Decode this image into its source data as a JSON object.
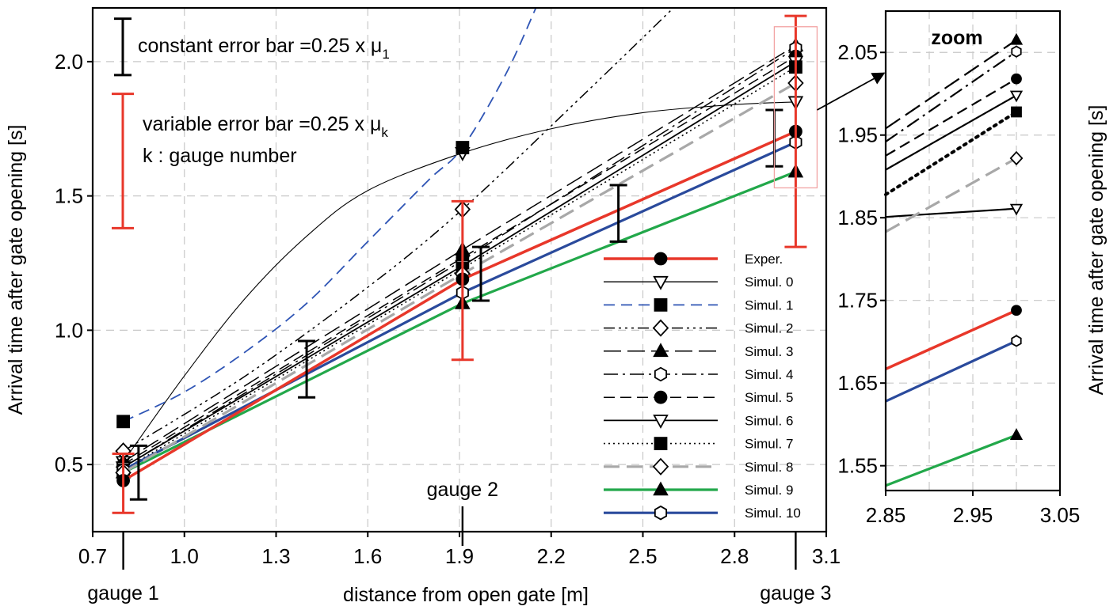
{
  "chart_data": [
    {
      "type": "line",
      "xlabel": "distance from open gate [m]",
      "ylabel": "Arrival time after gate opening [s]",
      "xlim": [
        0.7,
        3.1
      ],
      "ylim": [
        0.25,
        2.2
      ],
      "xticks": [
        0.7,
        1.0,
        1.3,
        1.6,
        1.9,
        2.2,
        2.5,
        2.8,
        3.1
      ],
      "xtick_labels": [
        "0.7",
        "1.0",
        "1.3",
        "1.6",
        "1.9",
        "2.2",
        "2.5",
        "2.8",
        "3.1"
      ],
      "yticks": [
        0.5,
        1.0,
        1.5,
        2.0
      ],
      "ytick_labels": [
        "0.5",
        "1.0",
        "1.5",
        "2.0"
      ],
      "grid": true,
      "legend_position": "bottom-right",
      "gauges": [
        {
          "label": "gauge 1",
          "x": 0.8
        },
        {
          "label": "gauge 2",
          "x": 1.91
        },
        {
          "label": "gauge 3",
          "x": 3.0
        }
      ],
      "annotations": {
        "constant_error_bar": "constant error bar =0.25 x μ",
        "constant_error_bar_sub": "1",
        "variable_error_bar": "variable error bar =0.25 x μ",
        "variable_error_bar_sub": "k",
        "gauge_note": "k : gauge number"
      },
      "constant_error_bars": [
        {
          "x": 0.85,
          "low": 0.37,
          "high": 0.57
        },
        {
          "x": 1.4,
          "low": 0.75,
          "high": 0.96
        },
        {
          "x": 1.97,
          "low": 1.11,
          "high": 1.31
        },
        {
          "x": 2.42,
          "low": 1.33,
          "high": 1.54
        },
        {
          "x": 2.93,
          "low": 1.61,
          "high": 1.82
        }
      ],
      "variable_error_bars": [
        {
          "x": 0.8,
          "low": 0.32,
          "high": 0.54
        },
        {
          "x": 1.91,
          "low": 0.89,
          "high": 1.48
        },
        {
          "x": 3.0,
          "low": 1.31,
          "high": 2.17
        }
      ],
      "sample_error_bars": {
        "constant": {
          "low": 1.95,
          "high": 2.16
        },
        "variable": {
          "low": 1.38,
          "high": 1.88
        }
      },
      "series": [
        {
          "name": "Exper.",
          "color": "#e8372a",
          "dash": "",
          "width": 3.5,
          "marker": "circle-filled",
          "x": [
            0.8,
            1.91,
            3.0
          ],
          "values": [
            0.44,
            1.19,
            1.74
          ]
        },
        {
          "name": "Simul. 0",
          "color": "#000000",
          "dash": "",
          "width": 1.1,
          "marker": "triangle-down-open",
          "x": [
            0.8,
            1.0,
            1.2,
            1.4,
            1.6,
            1.91,
            2.2,
            2.5,
            2.8,
            3.0
          ],
          "values": [
            0.51,
            0.83,
            1.12,
            1.35,
            1.52,
            1.66,
            1.75,
            1.81,
            1.84,
            1.85
          ]
        },
        {
          "name": "Simul. 1",
          "color": "#2f55b5",
          "dash": "14 8",
          "width": 1.8,
          "marker": "square-filled",
          "x": [
            0.8,
            1.0,
            1.2,
            1.4,
            1.6,
            1.8,
            1.91,
            2.05,
            2.15
          ],
          "values": [
            0.66,
            0.77,
            0.92,
            1.1,
            1.33,
            1.56,
            1.68,
            1.95,
            2.2
          ]
        },
        {
          "name": "Simul. 2",
          "color": "#000000",
          "dash": "14 5 3 5 3 5 3 5",
          "width": 1.5,
          "marker": "diamond-open",
          "x": [
            0.8,
            1.2,
            1.6,
            1.91,
            2.3,
            2.6
          ],
          "values": [
            0.55,
            0.83,
            1.16,
            1.45,
            1.87,
            2.2
          ]
        },
        {
          "name": "Simul. 3",
          "color": "#000000",
          "dash": "22 8",
          "width": 1.5,
          "marker": "triangle-up-filled",
          "x": [
            0.8,
            1.91,
            3.0
          ],
          "values": [
            0.51,
            1.3,
            2.06
          ]
        },
        {
          "name": "Simul. 4",
          "color": "#000000",
          "dash": "18 6 3 6",
          "width": 1.5,
          "marker": "hexagon-open",
          "x": [
            0.8,
            1.91,
            3.0
          ],
          "values": [
            0.49,
            1.26,
            2.05
          ]
        },
        {
          "name": "Simul. 5",
          "color": "#000000",
          "dash": "14 7",
          "width": 1.5,
          "marker": "circle-filled",
          "x": [
            0.8,
            1.91,
            3.0
          ],
          "values": [
            0.5,
            1.27,
            2.02
          ]
        },
        {
          "name": "Simul. 6",
          "color": "#000000",
          "dash": "",
          "width": 1.8,
          "marker": "triangle-down-open",
          "x": [
            0.8,
            1.91,
            3.0
          ],
          "values": [
            0.49,
            1.24,
            2.0
          ]
        },
        {
          "name": "Simul. 7",
          "color": "#000000",
          "dash": "2 4",
          "width": 1.6,
          "marker": "square-filled",
          "x": [
            0.8,
            1.91,
            3.0
          ],
          "values": [
            0.48,
            1.23,
            1.98
          ]
        },
        {
          "name": "Simul. 8",
          "color": "#a8a8a8",
          "dash": "20 9",
          "width": 3.2,
          "marker": "diamond-open",
          "x": [
            0.8,
            1.91,
            3.0
          ],
          "values": [
            0.47,
            1.21,
            1.92
          ]
        },
        {
          "name": "Simul. 9",
          "color": "#22a84a",
          "dash": "",
          "width": 3.2,
          "marker": "triangle-up-filled",
          "x": [
            0.8,
            1.91,
            3.0
          ],
          "values": [
            0.47,
            1.1,
            1.59
          ]
        },
        {
          "name": "Simul. 10",
          "color": "#2a4a9c",
          "dash": "",
          "width": 3.2,
          "marker": "hexagon-open",
          "x": [
            0.8,
            1.91,
            3.0
          ],
          "values": [
            0.48,
            1.14,
            1.7
          ]
        }
      ]
    },
    {
      "type": "line",
      "title": "zoom",
      "xlabel": "",
      "ylabel": "Arrival time after gate opening [s]",
      "xlim": [
        2.85,
        3.05
      ],
      "ylim": [
        1.52,
        2.1
      ],
      "xticks": [
        2.85,
        2.95,
        3.05
      ],
      "xtick_labels": [
        "2.85",
        "2.95",
        "3.05"
      ],
      "yticks": [
        1.55,
        1.65,
        1.75,
        1.85,
        1.95,
        2.05
      ],
      "ytick_labels": [
        "1.55",
        "1.65",
        "1.75",
        "1.85",
        "1.95",
        "2.05"
      ],
      "grid": true,
      "series": [
        {
          "name": "Exper.",
          "x": [
            2.85,
            3.0
          ],
          "values": [
            1.667,
            1.738
          ]
        },
        {
          "name": "Simul. 0",
          "x": [
            2.85,
            3.0
          ],
          "values": [
            1.851,
            1.861
          ]
        },
        {
          "name": "Simul. 3",
          "x": [
            2.85,
            3.0
          ],
          "values": [
            1.958,
            2.065
          ]
        },
        {
          "name": "Simul. 4",
          "x": [
            2.85,
            3.0
          ],
          "values": [
            1.942,
            2.051
          ]
        },
        {
          "name": "Simul. 5",
          "x": [
            2.85,
            3.0
          ],
          "values": [
            1.925,
            2.018
          ]
        },
        {
          "name": "Simul. 6",
          "x": [
            2.85,
            3.0
          ],
          "values": [
            1.908,
            1.998
          ]
        },
        {
          "name": "Simul. 7",
          "x": [
            2.85,
            3.0
          ],
          "values": [
            1.878,
            1.978
          ]
        },
        {
          "name": "Simul. 8",
          "x": [
            2.85,
            3.0
          ],
          "values": [
            1.833,
            1.922
          ]
        },
        {
          "name": "Simul. 9",
          "x": [
            2.85,
            3.0
          ],
          "values": [
            1.526,
            1.587
          ]
        },
        {
          "name": "Simul. 10",
          "x": [
            2.85,
            3.0
          ],
          "values": [
            1.628,
            1.701
          ]
        }
      ]
    }
  ]
}
